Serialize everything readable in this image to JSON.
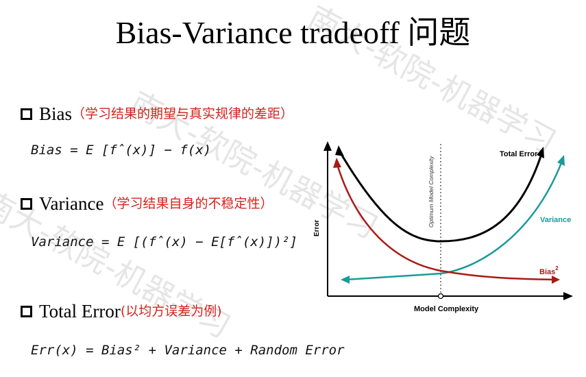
{
  "slide": {
    "title": "Bias-Variance tradeoff 问题",
    "bullets": [
      {
        "label": "Bias",
        "note": "（学习结果的期望与真实规律的差距）",
        "formula": "Bias = E [f̂(x)] − f(x)"
      },
      {
        "label": "Variance",
        "note": "（学习结果自身的不稳定性）",
        "formula": "Variance = E [(f̂(x) − E[f̂(x)])²]"
      },
      {
        "label": "Total Error",
        "note": "(以均方误差为例)",
        "formula": "Err(x) = Bias² + Variance + Random Error"
      }
    ],
    "watermark": "南大-软院-机器学习"
  },
  "chart": {
    "x_axis_label": "Model Complexity",
    "y_axis_label": "Error",
    "optimum_label": "Optimum Model Complexity",
    "total_error_label": "Total Error",
    "variance_label": "Variance",
    "bias_label": "Bias",
    "bias_superscript": "2",
    "colors": {
      "total_error": "#000000",
      "variance": "#1a9a9a",
      "bias": "#a81b14",
      "optimum": "#444444"
    }
  }
}
